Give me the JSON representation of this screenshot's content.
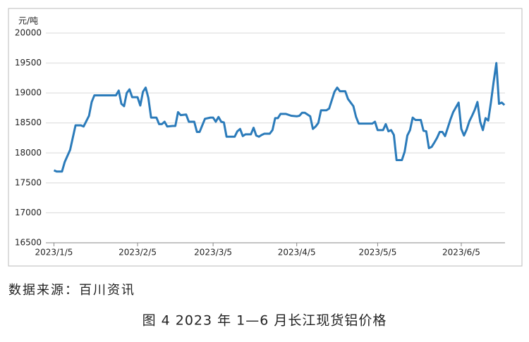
{
  "chart_data": {
    "type": "line",
    "y_label": "元/吨",
    "source": "数据来源：百川资讯",
    "caption": "图 4  2023 年 1—6 月长江现货铝价格",
    "color": "#2b7bba",
    "grid": true,
    "ylim": [
      16500,
      20000
    ],
    "yticks": [
      16500,
      17000,
      17500,
      18000,
      18500,
      19000,
      19500,
      20000
    ],
    "xlim": [
      "2023/1/2",
      "2023/6/22"
    ],
    "xticks": [
      "2023/1/5",
      "2023/2/5",
      "2023/3/5",
      "2023/4/5",
      "2023/5/5",
      "2023/6/5"
    ],
    "x": [
      "2023/1/5",
      "2023/1/6",
      "2023/1/8",
      "2023/1/9",
      "2023/1/11",
      "2023/1/13",
      "2023/1/15",
      "2023/1/16",
      "2023/1/18",
      "2023/1/19",
      "2023/1/20",
      "2023/1/28",
      "2023/1/29",
      "2023/1/30",
      "2023/1/31",
      "2023/2/1",
      "2023/2/2",
      "2023/2/3",
      "2023/2/5",
      "2023/2/6",
      "2023/2/7",
      "2023/2/8",
      "2023/2/9",
      "2023/2/10",
      "2023/2/12",
      "2023/2/13",
      "2023/2/14",
      "2023/2/15",
      "2023/2/16",
      "2023/2/18",
      "2023/2/19",
      "2023/2/20",
      "2023/2/21",
      "2023/2/23",
      "2023/2/24",
      "2023/2/26",
      "2023/2/27",
      "2023/2/28",
      "2023/3/1",
      "2023/3/2",
      "2023/3/4",
      "2023/3/5",
      "2023/3/6",
      "2023/3/7",
      "2023/3/8",
      "2023/3/9",
      "2023/3/10",
      "2023/3/13",
      "2023/3/14",
      "2023/3/15",
      "2023/3/16",
      "2023/3/17",
      "2023/3/19",
      "2023/3/20",
      "2023/3/21",
      "2023/3/22",
      "2023/3/23",
      "2023/3/24",
      "2023/3/26",
      "2023/3/27",
      "2023/3/28",
      "2023/3/29",
      "2023/3/30",
      "2023/4/1",
      "2023/4/3",
      "2023/4/5",
      "2023/4/6",
      "2023/4/7",
      "2023/4/8",
      "2023/4/10",
      "2023/4/11",
      "2023/4/12",
      "2023/4/13",
      "2023/4/14",
      "2023/4/16",
      "2023/4/17",
      "2023/4/18",
      "2023/4/19",
      "2023/4/20",
      "2023/4/21",
      "2023/4/23",
      "2023/4/24",
      "2023/4/26",
      "2023/4/27",
      "2023/4/28",
      "2023/5/2",
      "2023/5/3",
      "2023/5/4",
      "2023/5/5",
      "2023/5/7",
      "2023/5/8",
      "2023/5/9",
      "2023/5/10",
      "2023/5/11",
      "2023/5/12",
      "2023/5/14",
      "2023/5/15",
      "2023/5/16",
      "2023/5/17",
      "2023/5/18",
      "2023/5/19",
      "2023/5/21",
      "2023/5/22",
      "2023/5/23",
      "2023/5/24",
      "2023/5/25",
      "2023/5/26",
      "2023/5/27",
      "2023/5/28",
      "2023/5/29",
      "2023/5/30",
      "2023/5/31",
      "2023/6/1",
      "2023/6/2",
      "2023/6/4",
      "2023/6/5",
      "2023/6/6",
      "2023/6/7",
      "2023/6/8",
      "2023/6/9",
      "2023/6/10",
      "2023/6/11",
      "2023/6/12",
      "2023/6/13",
      "2023/6/14",
      "2023/6/15",
      "2023/6/16",
      "2023/6/17",
      "2023/6/18",
      "2023/6/19",
      "2023/6/20",
      "2023/6/21"
    ],
    "values": [
      17710,
      17690,
      17690,
      17850,
      18050,
      18460,
      18460,
      18440,
      18620,
      18850,
      18960,
      18960,
      19040,
      18820,
      18780,
      19000,
      19060,
      18930,
      18930,
      18790,
      19020,
      19090,
      18920,
      18590,
      18590,
      18480,
      18480,
      18520,
      18440,
      18450,
      18450,
      18680,
      18630,
      18640,
      18520,
      18520,
      18350,
      18350,
      18460,
      18570,
      18590,
      18590,
      18520,
      18600,
      18520,
      18510,
      18270,
      18270,
      18360,
      18400,
      18280,
      18310,
      18310,
      18420,
      18290,
      18270,
      18300,
      18320,
      18320,
      18380,
      18580,
      18580,
      18650,
      18650,
      18620,
      18610,
      18620,
      18670,
      18670,
      18610,
      18400,
      18440,
      18500,
      18710,
      18710,
      18740,
      18880,
      19020,
      19090,
      19030,
      19030,
      18900,
      18780,
      18600,
      18490,
      18490,
      18490,
      18520,
      18380,
      18380,
      18480,
      18360,
      18380,
      18300,
      17880,
      17880,
      18020,
      18290,
      18380,
      18590,
      18550,
      18550,
      18370,
      18360,
      18080,
      18100,
      18170,
      18250,
      18350,
      18350,
      18280,
      18420,
      18560,
      18680,
      18840,
      18400,
      18290,
      18390,
      18530,
      18620,
      18720,
      18850,
      18520,
      18380,
      18580,
      18540,
      18850,
      19190,
      19500,
      18820,
      18840,
      18800
    ]
  }
}
